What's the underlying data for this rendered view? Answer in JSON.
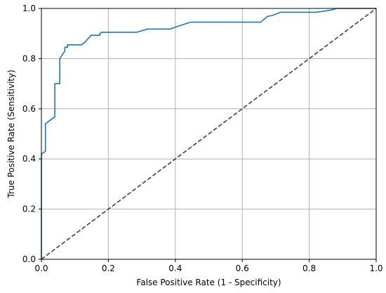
{
  "chart_data": {
    "type": "line",
    "title": "",
    "xlabel": "False Positive Rate (1 - Specificity)",
    "ylabel": "True Positive Rate (Sensitivity)",
    "xlim": [
      0.0,
      1.0
    ],
    "ylim": [
      0.0,
      1.0
    ],
    "xticks": [
      "0.0",
      "0.2",
      "0.4",
      "0.6",
      "0.8",
      "1.0"
    ],
    "yticks": [
      "0.0",
      "0.2",
      "0.4",
      "0.6",
      "0.8",
      "1.0"
    ],
    "grid": true,
    "legend": "none",
    "series": [
      {
        "style": "solid",
        "color": "#1f77b4",
        "x": [
          0.0,
          0.0,
          0.012,
          0.012,
          0.04,
          0.04,
          0.055,
          0.055,
          0.062,
          0.07,
          0.07,
          0.078,
          0.078,
          0.12,
          0.13,
          0.13,
          0.138,
          0.138,
          0.147,
          0.147,
          0.175,
          0.175,
          0.18,
          0.285,
          0.318,
          0.385,
          0.41,
          0.445,
          0.51,
          0.55,
          0.62,
          0.655,
          0.675,
          0.69,
          0.715,
          0.78,
          0.82,
          0.85,
          0.87,
          0.88,
          1.0
        ],
        "y": [
          0.0,
          0.42,
          0.43,
          0.54,
          0.568,
          0.7,
          0.7,
          0.8,
          0.815,
          0.83,
          0.845,
          0.845,
          0.855,
          0.855,
          0.865,
          0.865,
          0.878,
          0.878,
          0.89,
          0.893,
          0.893,
          0.9,
          0.905,
          0.905,
          0.918,
          0.918,
          0.93,
          0.945,
          0.945,
          0.945,
          0.945,
          0.945,
          0.968,
          0.972,
          0.985,
          0.985,
          0.985,
          0.99,
          0.995,
          1.0,
          1.0
        ]
      },
      {
        "style": "dashed",
        "color": "#404040",
        "x": [
          0.0,
          1.0
        ],
        "y": [
          0.0,
          1.0
        ]
      }
    ]
  }
}
